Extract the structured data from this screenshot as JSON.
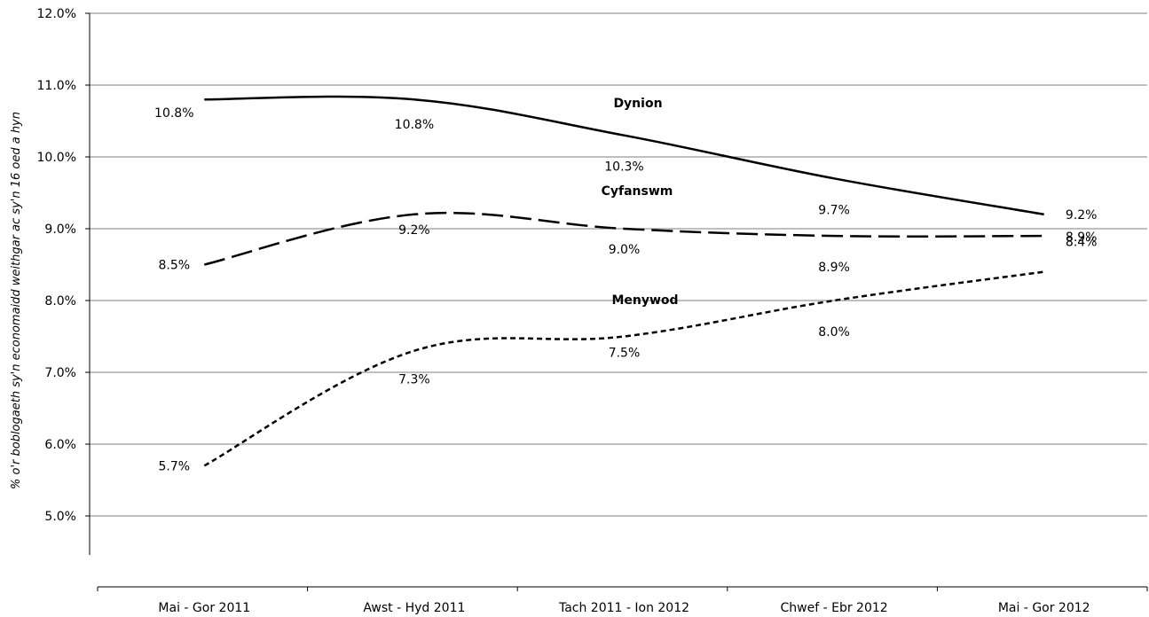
{
  "chart_data": {
    "type": "line",
    "categories": [
      "Mai - Gor 2011",
      "Awst - Hyd 2011",
      "Tach 2011 - Ion 2012",
      "Chwef - Ebr 2012",
      "Mai - Gor 2012"
    ],
    "series": [
      {
        "name": "Dynion",
        "values": [
          10.8,
          10.8,
          10.3,
          9.7,
          9.2
        ],
        "labels": [
          "10.8%",
          "10.8%",
          "10.3%",
          "9.7%",
          "9.2%"
        ],
        "line_style": "solid"
      },
      {
        "name": "Cyfanswm",
        "values": [
          8.5,
          9.2,
          9.0,
          8.9,
          8.9
        ],
        "labels": [
          "8.5%",
          "9.2%",
          "9.0%",
          "8.9%",
          "8.9%"
        ],
        "line_style": "long-dash"
      },
      {
        "name": "Menywod",
        "values": [
          5.7,
          7.3,
          7.5,
          8.0,
          8.4
        ],
        "labels": [
          "5.7%",
          "7.3%",
          "7.5%",
          "8.0%",
          "8.4%"
        ],
        "line_style": "short-dash"
      }
    ],
    "ylabel": "% o'r boblogaeth sy'n economaidd weithgar ac sy'n 16 oed a hyn",
    "xlabel": "",
    "ylim": [
      4.5,
      12.0
    ],
    "yticks": [
      5.0,
      6.0,
      7.0,
      8.0,
      9.0,
      10.0,
      11.0,
      12.0
    ],
    "ytick_labels": [
      "5.0%",
      "6.0%",
      "7.0%",
      "8.0%",
      "9.0%",
      "10.0%",
      "11.0%",
      "12.0%"
    ],
    "grid": true,
    "legend": "inline series labels",
    "colors": {
      "line": "#000000",
      "grid": "#000000",
      "background": "#ffffff"
    }
  }
}
